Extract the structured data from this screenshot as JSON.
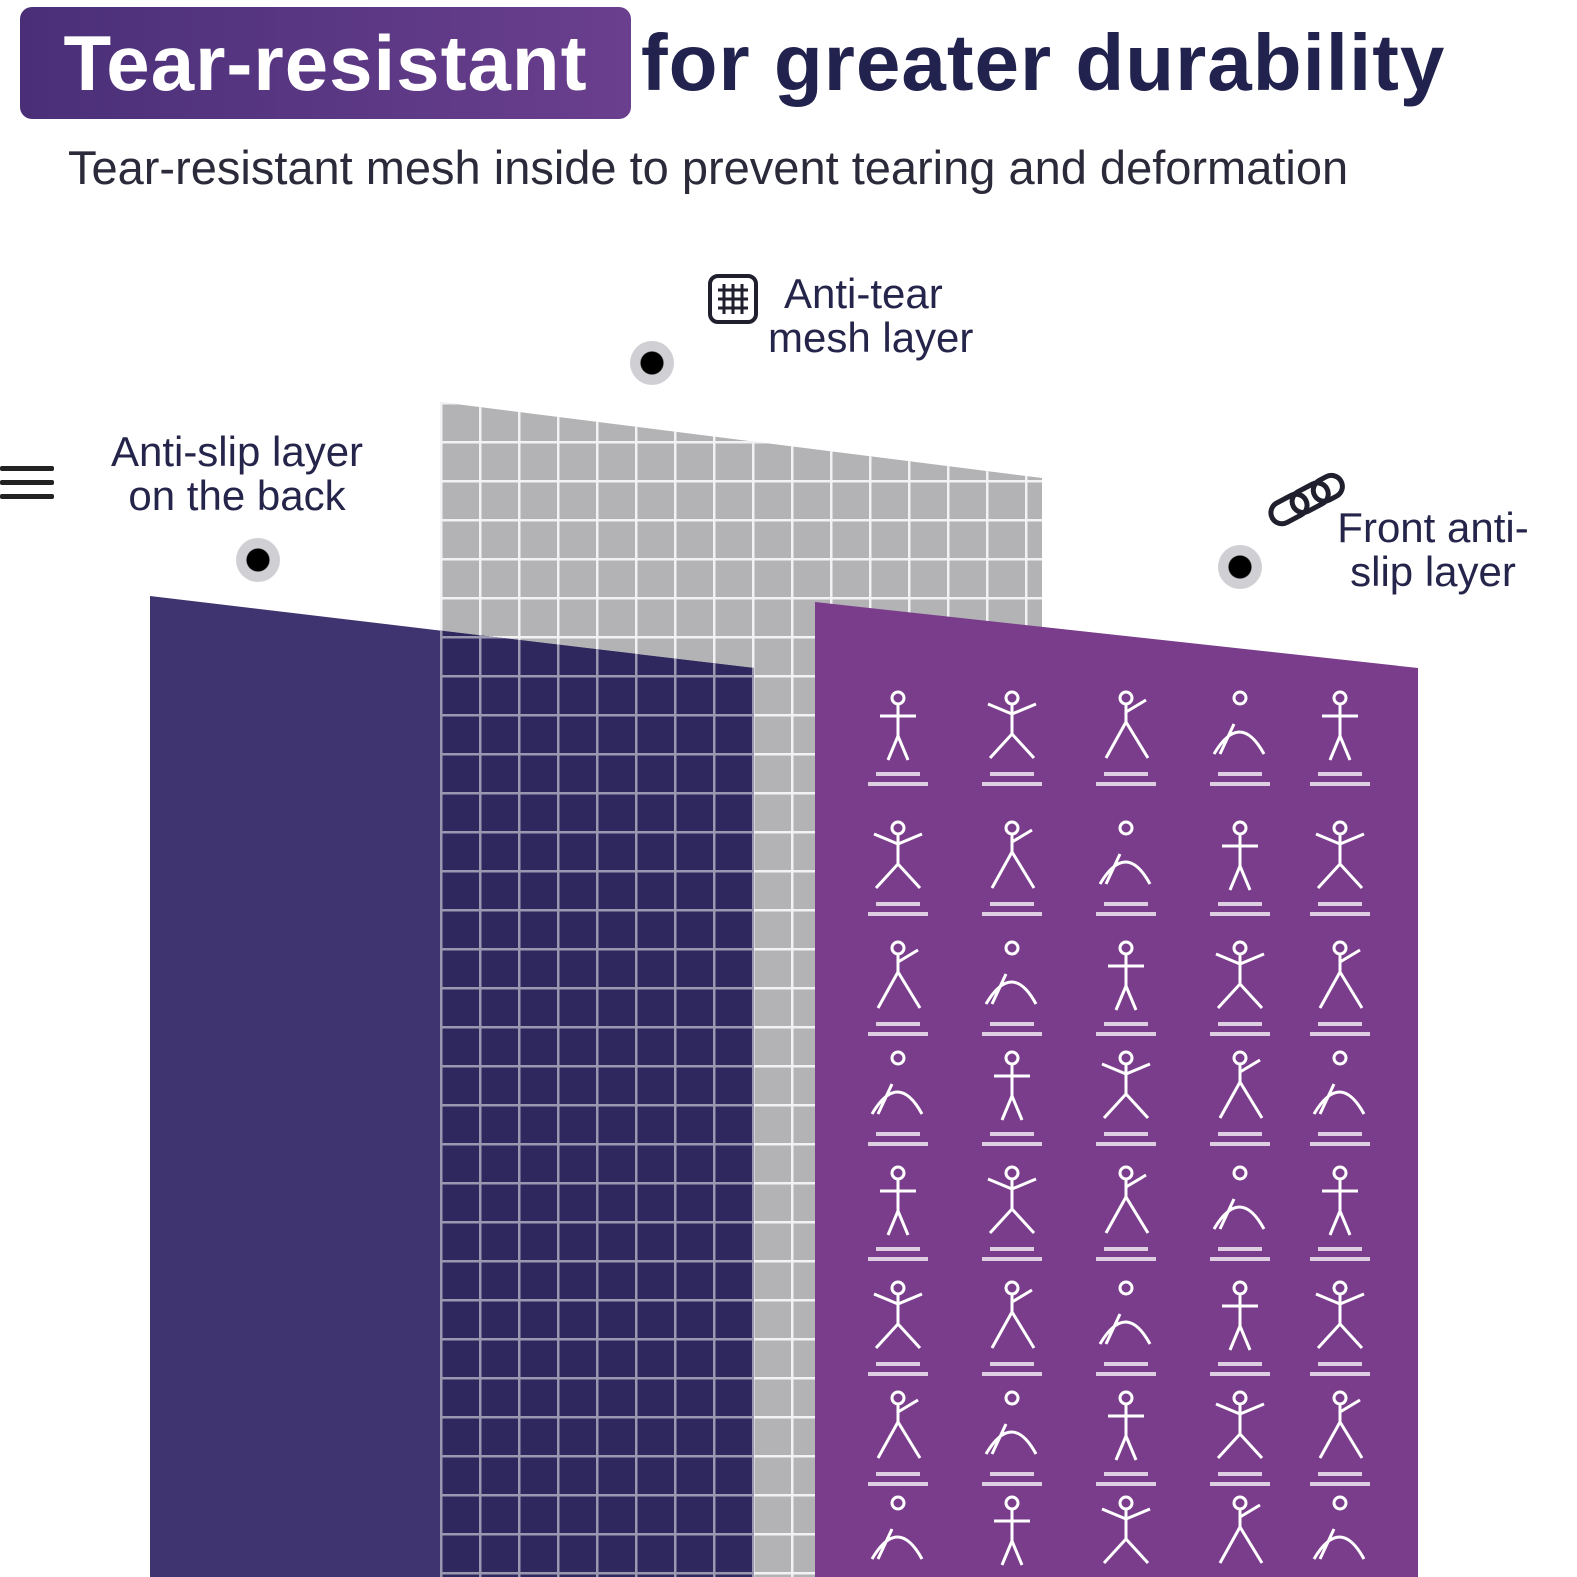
{
  "header": {
    "badge_text": "Tear-resistant",
    "headline_rest": "for greater durability",
    "subtitle": "Tear-resistant mesh inside to prevent tearing and deformation"
  },
  "labels": {
    "mesh": {
      "line1": "Anti-tear",
      "line2": "mesh layer",
      "icon": "grid-icon"
    },
    "back": {
      "line1": "Anti-slip layer",
      "line2": "on the back",
      "icon": "menu-icon"
    },
    "front": {
      "line1": "Front anti-",
      "line2": "slip layer",
      "icon": "link-icon"
    }
  },
  "colors": {
    "badge": "#5a3884",
    "headline_text": "#22224e",
    "back_layer": "#3f3470",
    "mesh_layer": "#b5b5b8",
    "front_layer": "#7a3d8c"
  }
}
